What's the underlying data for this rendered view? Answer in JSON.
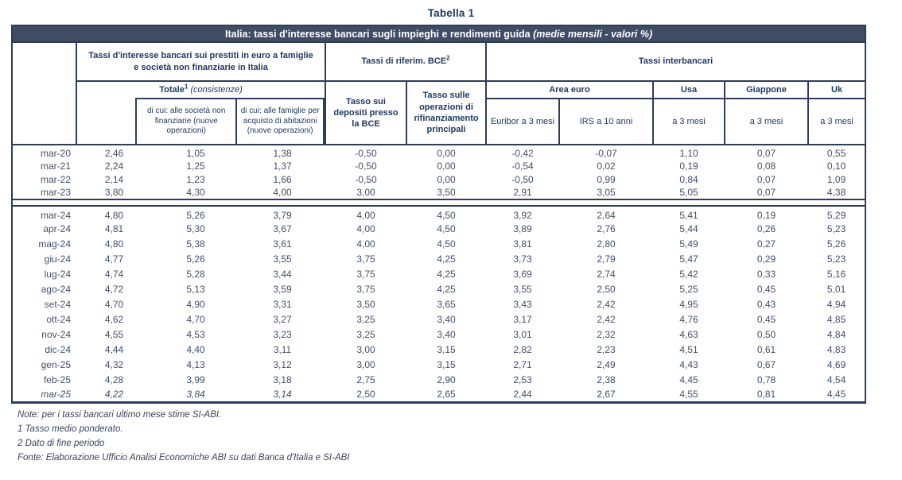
{
  "page_title": "Tabella 1",
  "table": {
    "banner": {
      "main": "Italia: tassi d'interesse bancari sugli impieghi e rendimenti guida ",
      "italic": "(medie mensili - valori %)"
    },
    "groups": {
      "prestiti": "Tassi d'interesse bancari sui prestiti in euro a famiglie e società non finanziarie in Italia",
      "bce": "Tassi di riferim. BCE",
      "bce_sup": "2",
      "interbancari": "Tassi interbancari"
    },
    "subheaders": {
      "totale_bold": "Totale",
      "totale_sup": "1",
      "totale_italic": " (consistenze)",
      "dicui_societa": "di cui: alle società non finanziarie (nuove operazioni)",
      "dicui_famiglie": "di cui: alle famiglie per acquisto di abitazioni (nuove operazioni)",
      "depositi": "Tasso sui depositi presso la BCE",
      "rifinanziamento": "Tasso sulle operazioni di rifinanziamento principali",
      "area_euro": "Area euro",
      "usa": "Usa",
      "giappone": "Giappone",
      "uk": "Uk",
      "euribor": "Euribor a 3 mesi",
      "irs": "IRS a 10 anni",
      "a3mesi_usa": "a 3 mesi",
      "a3mesi_giappone": "a 3 mesi",
      "a3mesi_uk": "a 3 mesi"
    },
    "section1": {
      "rows": [
        {
          "label": "mar-20",
          "values": [
            "2,46",
            "1,05",
            "1,38",
            "-0,50",
            "0,00",
            "-0,42",
            "-0,07",
            "1,10",
            "0,07",
            "0,55"
          ]
        },
        {
          "label": "mar-21",
          "values": [
            "2,24",
            "1,25",
            "1,37",
            "-0,50",
            "0,00",
            "-0,54",
            "0,02",
            "0,19",
            "0,08",
            "0,10"
          ]
        },
        {
          "label": "mar-22",
          "values": [
            "2,14",
            "1,23",
            "1,66",
            "-0,50",
            "0,00",
            "-0,50",
            "0,99",
            "0,84",
            "0,07",
            "1,09"
          ]
        },
        {
          "label": "mar-23",
          "values": [
            "3,80",
            "4,30",
            "4,00",
            "3,00",
            "3,50",
            "2,91",
            "3,05",
            "5,05",
            "0,07",
            "4,38"
          ]
        }
      ]
    },
    "section2": {
      "rows": [
        {
          "label": "mar-24",
          "values": [
            "4,80",
            "5,26",
            "3,79",
            "4,00",
            "4,50",
            "3,92",
            "2,64",
            "5,41",
            "0,19",
            "5,29"
          ]
        },
        {
          "label": "apr-24",
          "values": [
            "4,81",
            "5,30",
            "3,67",
            "4,00",
            "4,50",
            "3,89",
            "2,76",
            "5,44",
            "0,26",
            "5,23"
          ]
        },
        {
          "label": "mag-24",
          "values": [
            "4,80",
            "5,38",
            "3,61",
            "4,00",
            "4,50",
            "3,81",
            "2,80",
            "5,49",
            "0,27",
            "5,26"
          ]
        },
        {
          "label": "giu-24",
          "values": [
            "4,77",
            "5,26",
            "3,55",
            "3,75",
            "4,25",
            "3,73",
            "2,79",
            "5,47",
            "0,29",
            "5,23"
          ]
        },
        {
          "label": "lug-24",
          "values": [
            "4,74",
            "5,28",
            "3,44",
            "3,75",
            "4,25",
            "3,69",
            "2,74",
            "5,42",
            "0,33",
            "5,16"
          ]
        },
        {
          "label": "ago-24",
          "values": [
            "4,72",
            "5,13",
            "3,59",
            "3,75",
            "4,25",
            "3,55",
            "2,50",
            "5,25",
            "0,45",
            "5,01"
          ]
        },
        {
          "label": "set-24",
          "values": [
            "4,70",
            "4,90",
            "3,31",
            "3,50",
            "3,65",
            "3,43",
            "2,42",
            "4,95",
            "0,43",
            "4,94"
          ]
        },
        {
          "label": "ott-24",
          "values": [
            "4,62",
            "4,70",
            "3,27",
            "3,25",
            "3,40",
            "3,17",
            "2,42",
            "4,76",
            "0,45",
            "4,85"
          ]
        },
        {
          "label": "nov-24",
          "values": [
            "4,55",
            "4,53",
            "3,23",
            "3,25",
            "3,40",
            "3,01",
            "2,32",
            "4,63",
            "0,50",
            "4,84"
          ]
        },
        {
          "label": "dic-24",
          "values": [
            "4,44",
            "4,40",
            "3,11",
            "3,00",
            "3,15",
            "2,82",
            "2,23",
            "4,51",
            "0,61",
            "4,83"
          ]
        },
        {
          "label": "gen-25",
          "values": [
            "4,32",
            "4,13",
            "3,12",
            "3,00",
            "3,15",
            "2,71",
            "2,49",
            "4,43",
            "0,67",
            "4,69"
          ]
        },
        {
          "label": "feb-25",
          "values": [
            "4,28",
            "3,99",
            "3,18",
            "2,75",
            "2,90",
            "2,53",
            "2,38",
            "4,45",
            "0,78",
            "4,54"
          ]
        },
        {
          "label": "mar-25",
          "values": [
            "4,22",
            "3,84",
            "3,14",
            "2,50",
            "2,65",
            "2,44",
            "2,67",
            "4,55",
            "0,81",
            "4,45"
          ],
          "si_abi_estimate": true
        }
      ]
    }
  },
  "notes": [
    "Note: per i tassi bancari ultimo mese stime SI-ABI.",
    "1 Tasso medio ponderato.",
    "2 Dato di fine periodo",
    "Fonte: Elaborazione Ufficio Analisi Economiche ABI su dati Banca d'Italia e SI-ABI"
  ],
  "colors": {
    "banner_background": "#3f4c64",
    "border": "#2d3d5a",
    "header_text": "#203a64",
    "data_text": "#424f68"
  }
}
